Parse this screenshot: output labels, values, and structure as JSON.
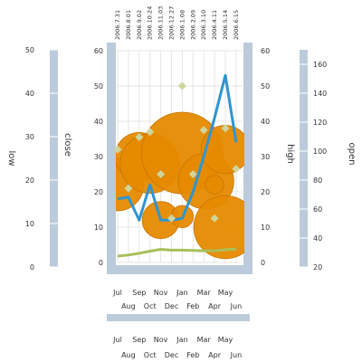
{
  "chart_data": {
    "type": "bubble-line-scatter",
    "title": "",
    "colors": {
      "bubble": "#e68a00",
      "line": "#2f95d0",
      "scatter": "#cfd59c",
      "area": "#a8c05a",
      "axis_band": "#bccbdb",
      "grid": "#e6e6e6"
    },
    "top_axis": {
      "labels": [
        "2006.7.31",
        "2006.8.01",
        "2006.9.02",
        "2006.10.24",
        "2006.11.03",
        "2006.12.27",
        "2006.1.08",
        "2006.2.09",
        "2006.3.10",
        "2006.4.11",
        "2006.5.14",
        "2006.6.15"
      ]
    },
    "x_axis": {
      "labels": [
        "Jul",
        "Aug",
        "Sep",
        "Oct",
        "Nov",
        "Dec",
        "Jan",
        "Feb",
        "Mar",
        "Apr",
        "May",
        "Jun"
      ]
    },
    "left_axis_1": {
      "label": "low",
      "ticks": [
        "0",
        "10",
        "20",
        "30",
        "40",
        "50"
      ],
      "min": 0,
      "max": 50
    },
    "left_axis_2": {
      "label": "close",
      "ticks": [
        "0",
        "10",
        "20",
        "30",
        "40",
        "50",
        "60"
      ],
      "min": 0,
      "max": 60
    },
    "right_axis_1": {
      "label": "high",
      "ticks": [
        "0",
        "10",
        "20",
        "30",
        "40",
        "50",
        "60"
      ],
      "min": 0,
      "max": 60
    },
    "right_axis_2": {
      "label": "open",
      "ticks": [
        "20",
        "40",
        "60",
        "80",
        "100",
        "120",
        "140",
        "160"
      ],
      "min": 20,
      "max": 170
    },
    "line_series": [
      18,
      18.5,
      12,
      22,
      12,
      12,
      12.5,
      20,
      30,
      41,
      53,
      34
    ],
    "area_series": [
      1.8,
      2.1,
      2.6,
      3.2,
      3.7,
      3.5,
      3.5,
      3.4,
      3.3,
      3.3,
      3.6,
      3.8
    ],
    "scatter_series": [
      32,
      21,
      35.5,
      37,
      25,
      12.5,
      50,
      25,
      37.5,
      12.5,
      38,
      26.5
    ],
    "bubbles": [
      {
        "x": 0,
        "y": 22,
        "size": 14
      },
      {
        "x": 2,
        "y": 30,
        "size": 13
      },
      {
        "x": 3,
        "y": 28,
        "size": 16
      },
      {
        "x": 4,
        "y": 12,
        "size": 10
      },
      {
        "x": 6,
        "y": 31,
        "size": 22
      },
      {
        "x": 6,
        "y": 13,
        "size": 6
      },
      {
        "x": 8.2,
        "y": 23,
        "size": 15
      },
      {
        "x": 9,
        "y": 22,
        "size": 5
      },
      {
        "x": 10,
        "y": 32,
        "size": 13
      },
      {
        "x": 10,
        "y": 10,
        "size": 17
      }
    ]
  }
}
